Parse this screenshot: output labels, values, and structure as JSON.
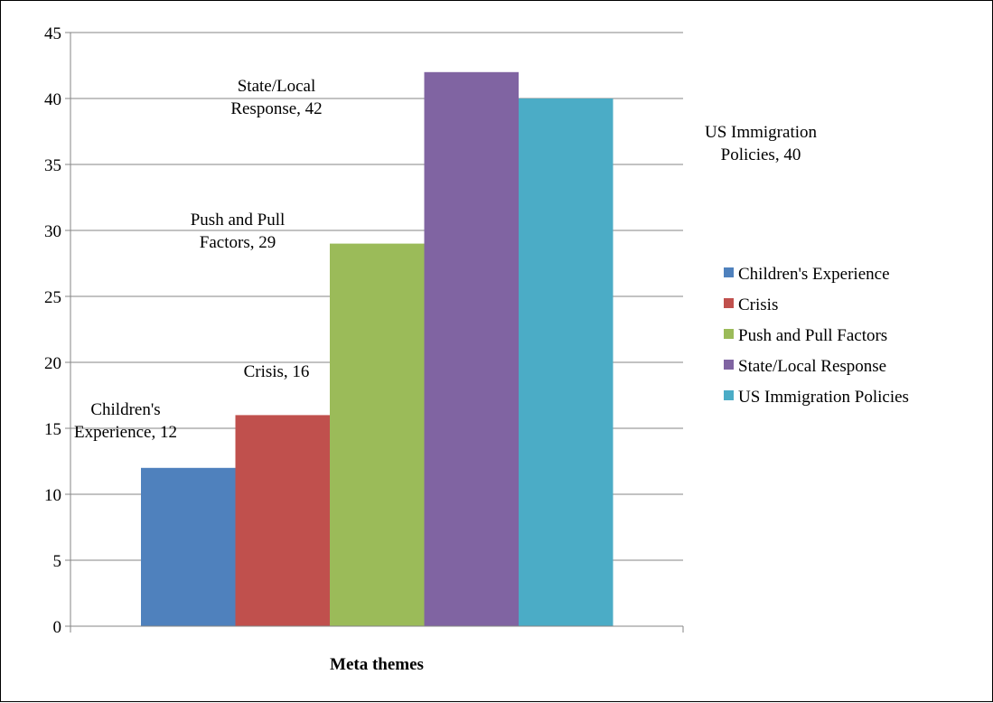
{
  "chart_data": {
    "type": "bar",
    "categories": [
      "Meta themes"
    ],
    "xlabel": "Meta themes",
    "ylabel": "",
    "ylim": [
      0,
      45
    ],
    "yticks": [
      0,
      5,
      10,
      15,
      20,
      25,
      30,
      35,
      40,
      45
    ],
    "grid": true,
    "legend_position": "right",
    "series": [
      {
        "name": "Children's Experience",
        "value": 12,
        "color": "#4F81BD",
        "label_lines": [
          "Children's",
          "Experience, 12"
        ]
      },
      {
        "name": "Crisis",
        "value": 16,
        "color": "#C0504D",
        "label_lines": [
          "Crisis, 16"
        ]
      },
      {
        "name": "Push and Pull Factors",
        "value": 29,
        "color": "#9BBB59",
        "label_lines": [
          "Push and Pull",
          "Factors, 29"
        ]
      },
      {
        "name": "State/Local Response",
        "value": 42,
        "color": "#8064A2",
        "label_lines": [
          "State/Local",
          "Response, 42"
        ]
      },
      {
        "name": "US Immigration Policies",
        "value": 40,
        "color": "#4BACC6",
        "label_lines": [
          "US Immigration",
          "Policies, 40"
        ]
      }
    ]
  }
}
